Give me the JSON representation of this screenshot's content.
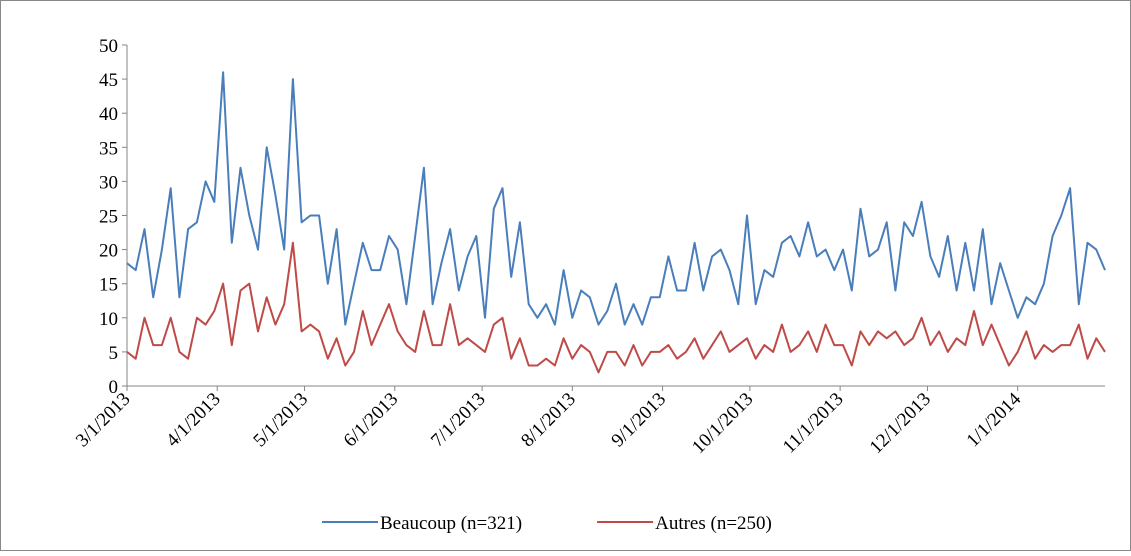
{
  "chart_data": {
    "type": "line",
    "x": [
      "3/1/2013",
      "3/4/2013",
      "3/7/2013",
      "3/10/2013",
      "3/13/2013",
      "3/16/2013",
      "3/19/2013",
      "3/22/2013",
      "3/25/2013",
      "3/28/2013",
      "3/31/2013",
      "4/3/2013",
      "4/6/2013",
      "4/9/2013",
      "4/12/2013",
      "4/15/2013",
      "4/18/2013",
      "4/21/2013",
      "4/24/2013",
      "4/27/2013",
      "4/30/2013",
      "5/3/2013",
      "5/6/2013",
      "5/9/2013",
      "5/12/2013",
      "5/15/2013",
      "5/18/2013",
      "5/21/2013",
      "5/24/2013",
      "5/27/2013",
      "5/30/2013",
      "6/2/2013",
      "6/5/2013",
      "6/8/2013",
      "6/11/2013",
      "6/14/2013",
      "6/17/2013",
      "6/20/2013",
      "6/23/2013",
      "6/26/2013",
      "6/29/2013",
      "7/2/2013",
      "7/5/2013",
      "7/8/2013",
      "7/11/2013",
      "7/14/2013",
      "7/17/2013",
      "7/20/2013",
      "7/23/2013",
      "7/26/2013",
      "7/29/2013",
      "8/1/2013",
      "8/4/2013",
      "8/7/2013",
      "8/10/2013",
      "8/13/2013",
      "8/16/2013",
      "8/19/2013",
      "8/22/2013",
      "8/25/2013",
      "8/28/2013",
      "8/31/2013",
      "9/3/2013",
      "9/6/2013",
      "9/9/2013",
      "9/12/2013",
      "9/15/2013",
      "9/18/2013",
      "9/21/2013",
      "9/24/2013",
      "9/27/2013",
      "9/30/2013",
      "10/3/2013",
      "10/6/2013",
      "10/9/2013",
      "10/12/2013",
      "10/15/2013",
      "10/18/2013",
      "10/21/2013",
      "10/24/2013",
      "10/27/2013",
      "10/30/2013",
      "11/2/2013",
      "11/5/2013",
      "11/8/2013",
      "11/11/2013",
      "11/14/2013",
      "11/17/2013",
      "11/20/2013",
      "11/23/2013",
      "11/26/2013",
      "11/29/2013",
      "12/2/2013",
      "12/5/2013",
      "12/8/2013",
      "12/11/2013",
      "12/14/2013",
      "12/17/2013",
      "12/20/2013",
      "12/23/2013",
      "12/26/2013",
      "12/29/2013",
      "1/1/2014",
      "1/4/2014",
      "1/7/2014",
      "1/10/2014",
      "1/13/2014",
      "1/16/2014",
      "1/19/2014",
      "1/22/2014",
      "1/25/2014",
      "1/28/2014",
      "1/31/2014"
    ],
    "series": [
      {
        "name": "Beaucoup (n=321)",
        "color": "#4a7ebb",
        "values": [
          18,
          17,
          23,
          13,
          20,
          29,
          13,
          23,
          24,
          30,
          27,
          46,
          21,
          32,
          25,
          20,
          35,
          28,
          20,
          45,
          24,
          25,
          25,
          15,
          23,
          9,
          15,
          21,
          17,
          17,
          22,
          20,
          12,
          22,
          32,
          12,
          18,
          23,
          14,
          19,
          22,
          10,
          26,
          29,
          16,
          24,
          12,
          10,
          12,
          9,
          17,
          10,
          14,
          13,
          9,
          11,
          15,
          9,
          12,
          9,
          13,
          13,
          19,
          14,
          14,
          21,
          14,
          19,
          20,
          17,
          12,
          25,
          12,
          17,
          16,
          21,
          22,
          19,
          24,
          19,
          20,
          17,
          20,
          14,
          26,
          19,
          20,
          24,
          14,
          24,
          22,
          27,
          19,
          16,
          22,
          14,
          21,
          14,
          23,
          12,
          18,
          14,
          10,
          13,
          12,
          15,
          22,
          25,
          29,
          12,
          21,
          20,
          17
        ]
      },
      {
        "name": "Autres (n=250)",
        "color": "#be4b48",
        "values": [
          5,
          4,
          10,
          6,
          6,
          10,
          5,
          4,
          10,
          9,
          11,
          15,
          6,
          14,
          15,
          8,
          13,
          9,
          12,
          21,
          8,
          9,
          8,
          4,
          7,
          3,
          5,
          11,
          6,
          9,
          12,
          8,
          6,
          5,
          11,
          6,
          6,
          12,
          6,
          7,
          6,
          5,
          9,
          10,
          4,
          7,
          3,
          3,
          4,
          3,
          7,
          4,
          6,
          5,
          2,
          5,
          5,
          3,
          6,
          3,
          5,
          5,
          6,
          4,
          5,
          7,
          4,
          6,
          8,
          5,
          6,
          7,
          4,
          6,
          5,
          9,
          5,
          6,
          8,
          5,
          9,
          6,
          6,
          3,
          8,
          6,
          8,
          7,
          8,
          6,
          7,
          10,
          6,
          8,
          5,
          7,
          6,
          11,
          6,
          9,
          6,
          3,
          5,
          8,
          4,
          6,
          5,
          6,
          6,
          9,
          4,
          7,
          5
        ]
      }
    ],
    "xlim": [
      "3/1/2013",
      "1/31/2014"
    ],
    "xticks": [
      "3/1/2013",
      "4/1/2013",
      "5/1/2013",
      "6/1/2013",
      "7/1/2013",
      "8/1/2013",
      "9/1/2013",
      "10/1/2013",
      "11/1/2013",
      "12/1/2013",
      "1/1/2014"
    ],
    "ylim": [
      0,
      50
    ],
    "yticks": [
      0,
      5,
      10,
      15,
      20,
      25,
      30,
      35,
      40,
      45,
      50
    ],
    "legend": "bottom"
  }
}
